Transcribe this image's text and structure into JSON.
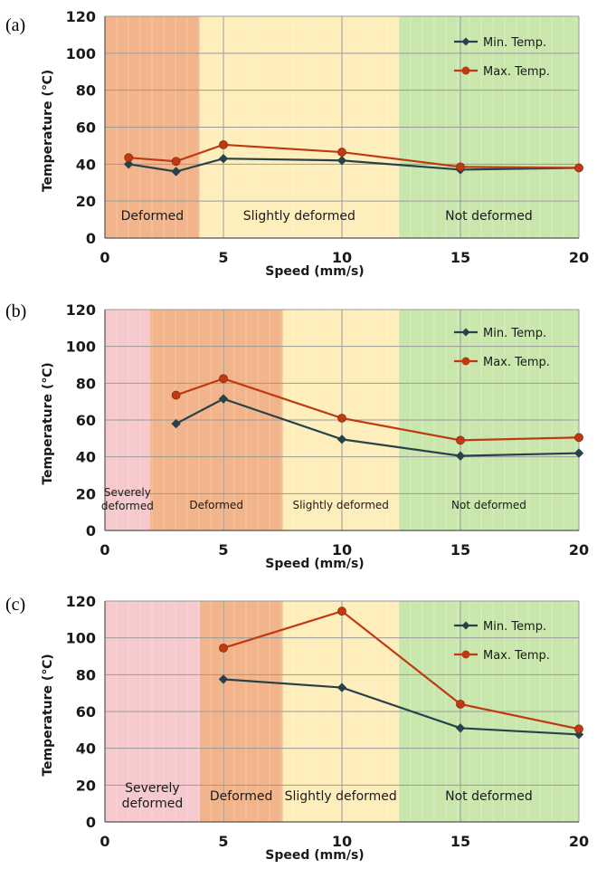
{
  "chart_data": [
    {
      "type": "line",
      "panel_label": "(a)",
      "xlabel": "Speed (mm/s)",
      "ylabel": "Temperature (℃)",
      "xlim": [
        0,
        20
      ],
      "ylim": [
        0,
        120
      ],
      "xticks": [
        0,
        5,
        10,
        15,
        20
      ],
      "yticks": [
        0,
        20,
        40,
        60,
        80,
        100,
        120
      ],
      "legend": "top-right",
      "zones": [
        {
          "label": "Deformed",
          "start": 0,
          "end": 4,
          "color": "#f2b48a"
        },
        {
          "label": "Slightly deformed",
          "start": 4,
          "end": 12.4,
          "color": "#fdeebb"
        },
        {
          "label": "Not deformed",
          "start": 12.4,
          "end": 20,
          "color": "#c9e6ad"
        }
      ],
      "series": [
        {
          "name": "Min. Temp.",
          "color": "#27424a",
          "marker": "diamond",
          "x": [
            1,
            3,
            5,
            10,
            15,
            20
          ],
          "values": [
            40,
            36,
            43,
            42,
            37,
            38
          ]
        },
        {
          "name": "Max. Temp.",
          "color": "#bf3a13",
          "marker": "circle",
          "x": [
            1,
            3,
            5,
            10,
            15,
            20
          ],
          "values": [
            43.5,
            41.5,
            50.5,
            46.5,
            38.5,
            38
          ]
        }
      ]
    },
    {
      "type": "line",
      "panel_label": "(b)",
      "xlabel": "Speed (mm/s)",
      "ylabel": "Temperature (℃)",
      "xlim": [
        0,
        20
      ],
      "ylim": [
        0,
        120
      ],
      "xticks": [
        0,
        5,
        10,
        15,
        20
      ],
      "yticks": [
        0,
        20,
        40,
        60,
        80,
        100,
        120
      ],
      "legend": "top-right",
      "zones": [
        {
          "label": "Severely deformed",
          "start": 0,
          "end": 1.9,
          "color": "#f6c9cc"
        },
        {
          "label": "Deformed",
          "start": 1.9,
          "end": 7.5,
          "color": "#f2b48a"
        },
        {
          "label": "Slightly deformed",
          "start": 7.5,
          "end": 12.4,
          "color": "#fdeebb"
        },
        {
          "label": "Not deformed",
          "start": 12.4,
          "end": 20,
          "color": "#c9e6ad"
        }
      ],
      "series": [
        {
          "name": "Min. Temp.",
          "color": "#27424a",
          "marker": "diamond",
          "x": [
            3,
            5,
            10,
            15,
            20
          ],
          "values": [
            58,
            71.5,
            49.5,
            40.5,
            42
          ]
        },
        {
          "name": "Max. Temp.",
          "color": "#bf3a13",
          "marker": "circle",
          "x": [
            3,
            5,
            10,
            15,
            20
          ],
          "values": [
            73.5,
            82.5,
            61,
            49,
            50.5
          ]
        }
      ]
    },
    {
      "type": "line",
      "panel_label": "(c)",
      "xlabel": "Speed (mm/s)",
      "ylabel": "Temperature (℃)",
      "xlim": [
        0,
        20
      ],
      "ylim": [
        0,
        120
      ],
      "xticks": [
        0,
        5,
        10,
        15,
        20
      ],
      "yticks": [
        0,
        20,
        40,
        60,
        80,
        100,
        120
      ],
      "legend": "top-right",
      "zones": [
        {
          "label": "Severely deformed",
          "start": 0,
          "end": 4,
          "color": "#f6c9cc"
        },
        {
          "label": "Deformed",
          "start": 4,
          "end": 7.5,
          "color": "#f2b48a"
        },
        {
          "label": "Slightly deformed",
          "start": 7.5,
          "end": 12.4,
          "color": "#fdeebb"
        },
        {
          "label": "Not deformed",
          "start": 12.4,
          "end": 20,
          "color": "#c9e6ad"
        }
      ],
      "series": [
        {
          "name": "Min. Temp.",
          "color": "#27424a",
          "marker": "diamond",
          "x": [
            5,
            10,
            15,
            20
          ],
          "values": [
            77.5,
            73,
            51,
            47.5
          ]
        },
        {
          "name": "Max. Temp.",
          "color": "#bf3a13",
          "marker": "circle",
          "x": [
            5,
            10,
            15,
            20
          ],
          "values": [
            94.5,
            114.5,
            64,
            50.5
          ]
        }
      ]
    }
  ]
}
